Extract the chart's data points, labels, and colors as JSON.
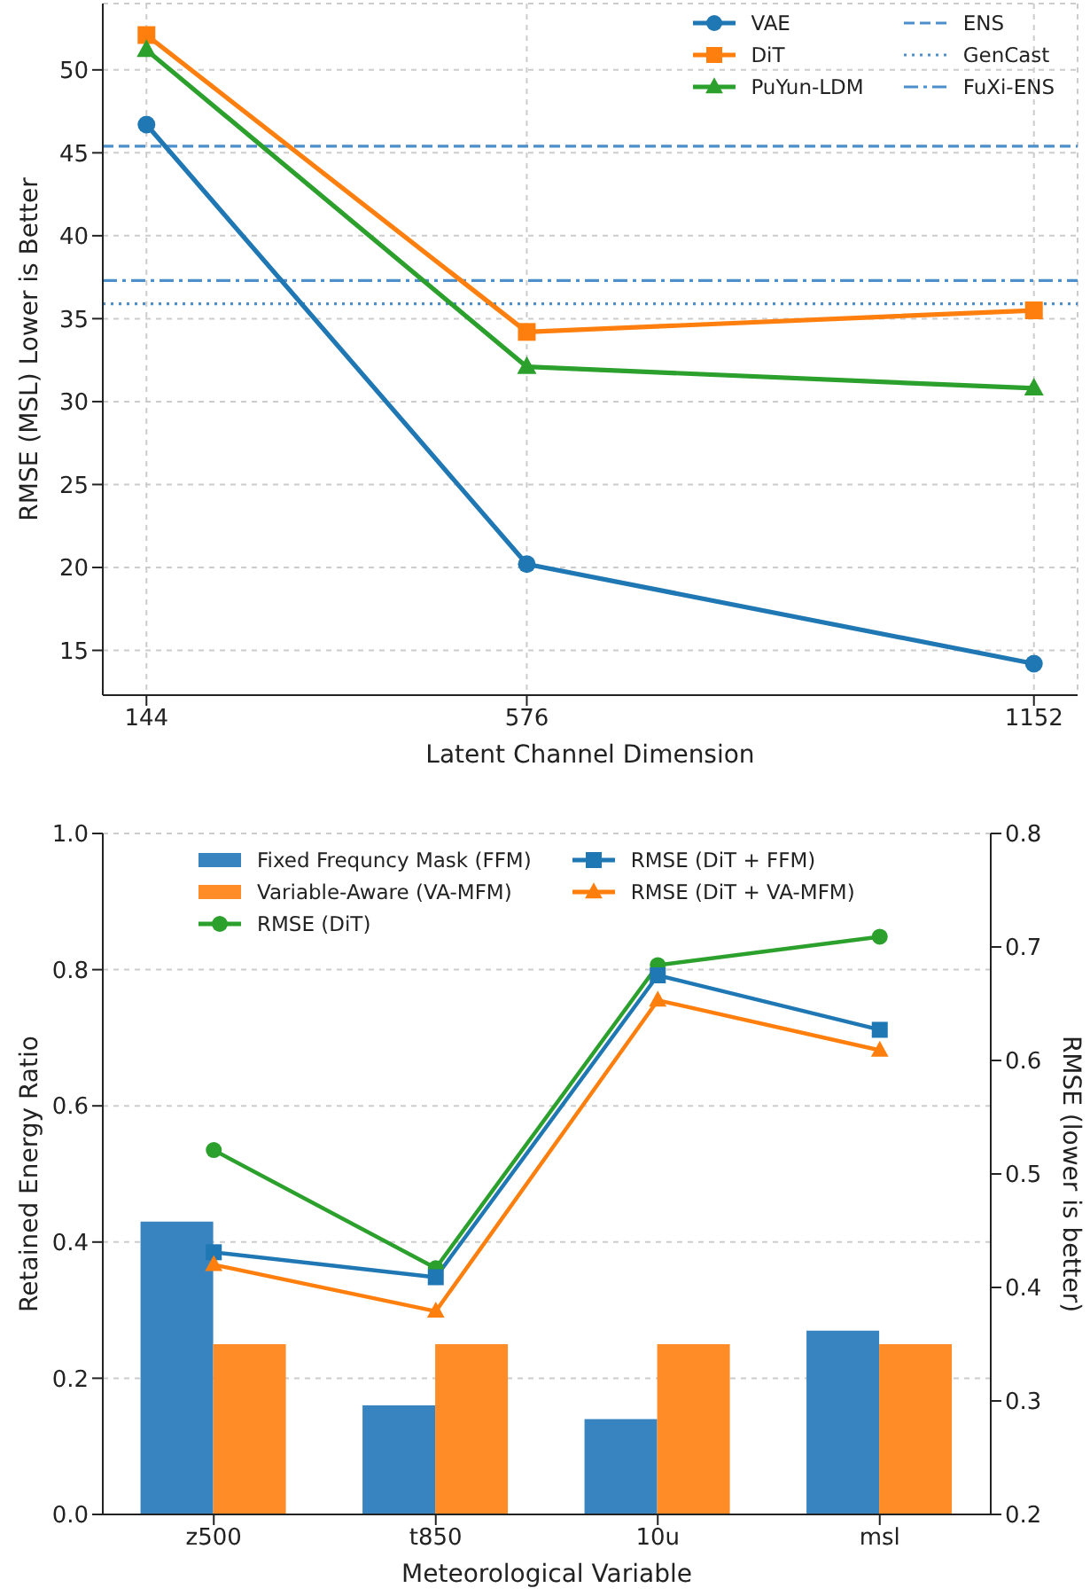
{
  "chart_data": [
    {
      "type": "line",
      "xlabel": "Latent Channel Dimension",
      "ylabel": "RMSE (MSL) Lower is Better",
      "x": [
        144,
        576,
        1152
      ],
      "xlim": [
        94.4,
        1201.6
      ],
      "xticks": [
        144,
        576,
        1152
      ],
      "ylim": [
        12.3,
        54.0
      ],
      "yticks": [
        15,
        20,
        25,
        30,
        35,
        40,
        45,
        50
      ],
      "grid": true,
      "legend": "top right",
      "series": [
        {
          "name": "VAE",
          "color": "#1f77b4",
          "marker": "circle",
          "values": [
            46.7,
            20.2,
            14.2
          ]
        },
        {
          "name": "DiT",
          "color": "#ff7f0e",
          "marker": "square",
          "values": [
            52.1,
            34.2,
            35.5
          ]
        },
        {
          "name": "PuYun-LDM",
          "color": "#2ca02c",
          "marker": "triangle",
          "values": [
            51.2,
            32.1,
            30.8
          ]
        }
      ],
      "ref_lines": [
        {
          "axis": "y",
          "value": 45.4,
          "label": "ENS",
          "color": "#4c8fcb",
          "line_style": "dashed"
        },
        {
          "axis": "y",
          "value": 35.9,
          "label": "GenCast",
          "color": "#4c8fcb",
          "line_style": "dotted"
        },
        {
          "axis": "y",
          "value": 37.3,
          "label": "FuXi-ENS",
          "color": "#4c8fcb",
          "line_style": "dashdot"
        }
      ]
    },
    {
      "type": "bar",
      "xlabel": "Meteorological Variable",
      "ylabel": "Retained Energy Ratio",
      "y2label": "RMSE (lower is better)",
      "categories": [
        "z500",
        "t850",
        "10u",
        "msl"
      ],
      "ylim": [
        0,
        1.0
      ],
      "yticks": [
        {
          "value": 0,
          "label": "0.0"
        },
        0.2,
        0.4,
        0.6,
        0.8,
        {
          "value": 1.0,
          "label": "1.0"
        }
      ],
      "y2lim": [
        0.2,
        0.8
      ],
      "y2ticks": [
        0.2,
        0.3,
        0.4,
        0.5,
        0.6,
        0.7,
        0.8
      ],
      "grid": "y",
      "legend": "top",
      "series": [
        {
          "name": "Fixed Frequncy Mask (FFM)",
          "type": "bar",
          "color": "#3784c0",
          "values": [
            0.43,
            0.16,
            0.14,
            0.27
          ]
        },
        {
          "name": "Variable-Aware (VA-MFM)",
          "type": "bar",
          "color": "#ff8c26",
          "values": [
            0.25,
            0.25,
            0.25,
            0.25
          ]
        },
        {
          "name": "RMSE (DiT)",
          "type": "line",
          "axis": "y2",
          "color": "#2ca02c",
          "marker": "circle",
          "values": [
            0.521,
            0.417,
            0.684,
            0.709
          ]
        },
        {
          "name": "RMSE (DiT + FFM)",
          "type": "line",
          "axis": "y2",
          "color": "#1f77b4",
          "marker": "square",
          "values": [
            0.431,
            0.409,
            0.675,
            0.627
          ]
        },
        {
          "name": "RMSE (DiT + VA-MFM)",
          "type": "line",
          "axis": "y2",
          "color": "#ff7f0e",
          "marker": "triangle",
          "values": [
            0.42,
            0.379,
            0.653,
            0.609
          ]
        }
      ]
    }
  ]
}
